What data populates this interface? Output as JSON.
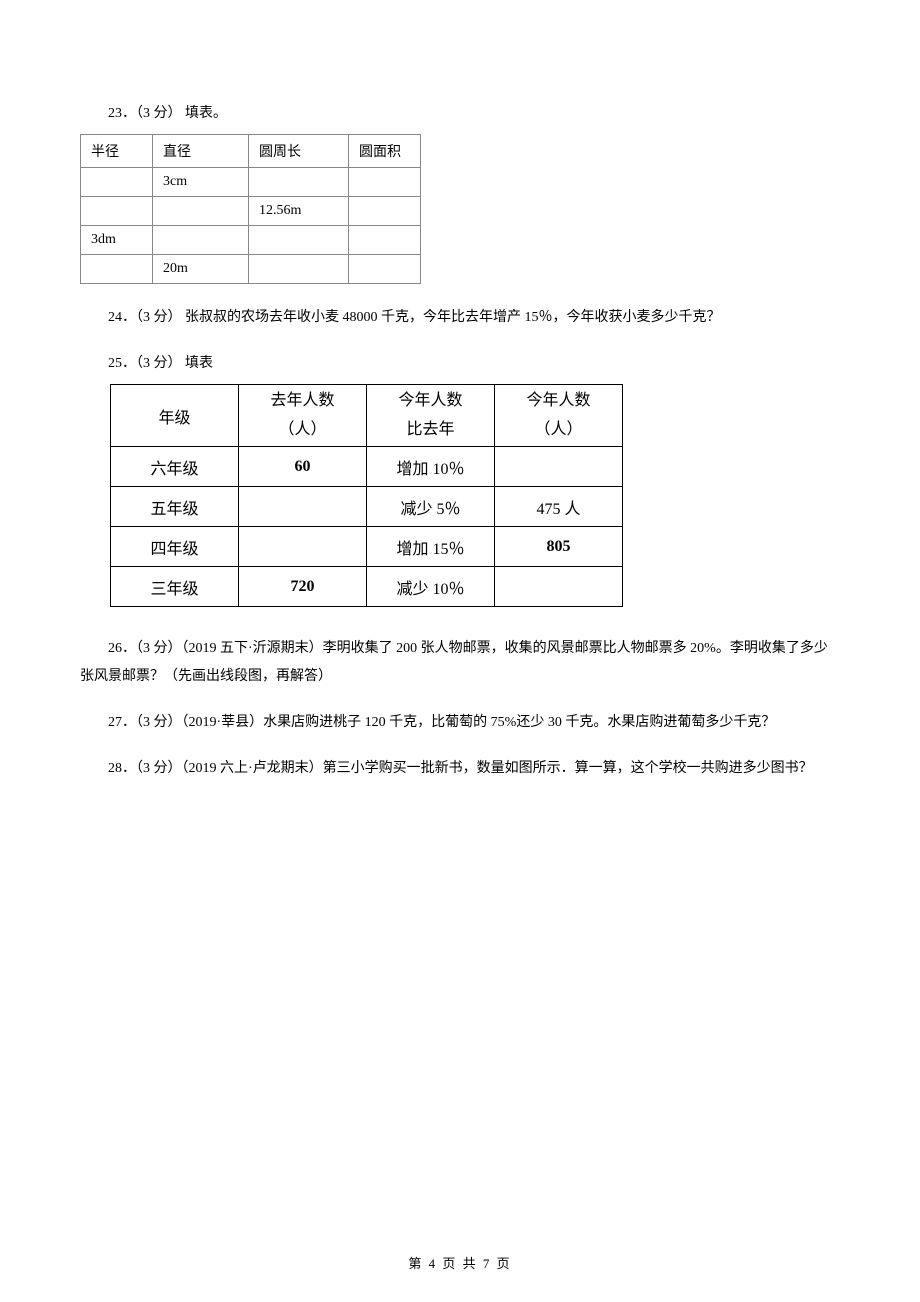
{
  "q23": {
    "label": "23．（3 分） 填表。",
    "table": {
      "headers": [
        "半径",
        "直径",
        "圆周长",
        "圆面积"
      ],
      "rows": [
        [
          "",
          "3cm",
          "",
          ""
        ],
        [
          "",
          "",
          "12.56m",
          ""
        ],
        [
          "3dm",
          "",
          "",
          ""
        ],
        [
          "",
          "20m",
          "",
          ""
        ]
      ]
    }
  },
  "q24": {
    "label": "24．（3 分） 张叔叔的农场去年收小麦 48000 千克，今年比去年增产 15％，今年收获小麦多少千克？"
  },
  "q25": {
    "label": "25．（3 分） 填表",
    "table": {
      "headers": [
        "年级",
        "去年人数\n（人）",
        "今年人数\n比去年",
        "今年人数\n（人）"
      ],
      "rows": [
        [
          "六年级",
          "60",
          "增加 10％",
          ""
        ],
        [
          "五年级",
          "",
          "减少 5％",
          "475 人"
        ],
        [
          "四年级",
          "",
          "增加 15％",
          "805"
        ],
        [
          "三年级",
          "720",
          "减少 10％",
          ""
        ]
      ]
    }
  },
  "q26": {
    "label": "26．（3 分）（2019 五下·沂源期末）李明收集了 200 张人物邮票，收集的风景邮票比人物邮票多 20%。李明收集了多少张风景邮票？（先画出线段图，再解答）"
  },
  "q27": {
    "label": "27．（3 分）（2019·莘县）水果店购进桃子 120 千克，比葡萄的 75%还少 30 千克。水果店购进葡萄多少千克？"
  },
  "q28": {
    "label": "28．（3 分）（2019 六上·卢龙期末）第三小学购买一批新书，数量如图所示．算一算，这个学校一共购进多少图书？"
  },
  "footer": {
    "text": "第 4 页 共 7 页"
  }
}
